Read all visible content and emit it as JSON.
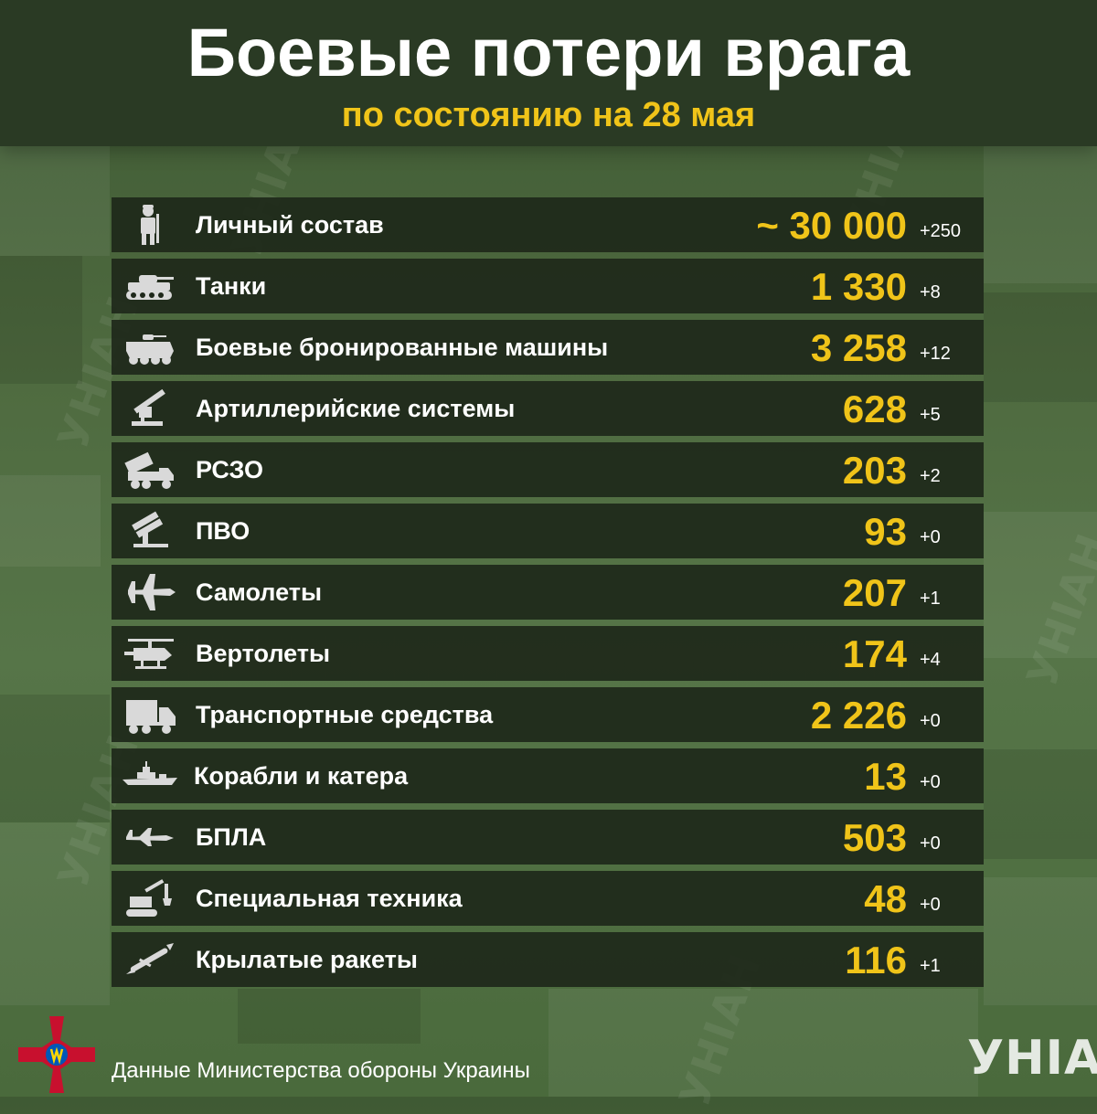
{
  "header": {
    "title": "Боевые потери врага",
    "subtitle": "по состоянию на 28 мая"
  },
  "rows": [
    {
      "icon": "soldier-icon",
      "label": "Личный состав",
      "value": "~ 30 000",
      "delta": "+250"
    },
    {
      "icon": "tank-icon",
      "label": "Танки",
      "value": "1 330",
      "delta": "+8"
    },
    {
      "icon": "armored-vehicle-icon",
      "label": "Боевые бронированные машины",
      "value": "3 258",
      "delta": "+12"
    },
    {
      "icon": "artillery-icon",
      "label": "Артиллерийские системы",
      "value": "628",
      "delta": "+5"
    },
    {
      "icon": "mlrs-icon",
      "label": "РСЗО",
      "value": "203",
      "delta": "+2"
    },
    {
      "icon": "air-defense-icon",
      "label": "ПВО",
      "value": "93",
      "delta": "+0"
    },
    {
      "icon": "fighter-jet-icon",
      "label": "Самолеты",
      "value": "207",
      "delta": "+1"
    },
    {
      "icon": "helicopter-icon",
      "label": "Вертолеты",
      "value": "174",
      "delta": "+4"
    },
    {
      "icon": "truck-icon",
      "label": "Транспортные средства",
      "value": "2 226",
      "delta": "+0"
    },
    {
      "icon": "warship-icon",
      "label": "Корабли и катера",
      "value": "13",
      "delta": "+0"
    },
    {
      "icon": "drone-icon",
      "label": "БПЛА",
      "value": "503",
      "delta": "+0"
    },
    {
      "icon": "excavator-icon",
      "label": "Специальная техника",
      "value": "48",
      "delta": "+0"
    },
    {
      "icon": "cruise-missile-icon",
      "label": "Крылатые ракеты",
      "value": "116",
      "delta": "+1"
    }
  ],
  "footer": {
    "source": "Данные Министерства обороны Украины",
    "brand": "УНІАН"
  },
  "colors": {
    "accent": "#f0c419",
    "row_bg": "#1e281a",
    "header_bg": "#2a3a24",
    "icon": "#d9d9d9"
  }
}
